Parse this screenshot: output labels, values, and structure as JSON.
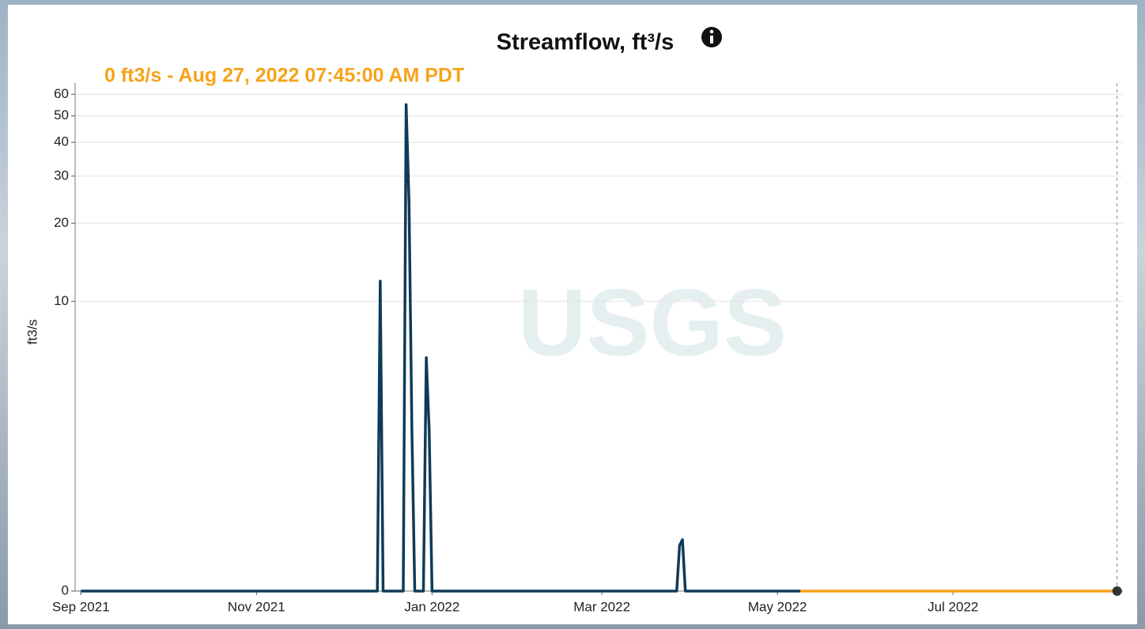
{
  "chart_data": {
    "type": "line",
    "title": "Streamflow, ft³/s",
    "annotation": "0 ft3/s - Aug 27, 2022 07:45:00 AM PDT",
    "ylabel": "ft3/s",
    "watermark": "USGS",
    "yscale": "log1p",
    "grid": true,
    "xlim": [
      "2021-08-30",
      "2022-08-29"
    ],
    "xticks": [
      {
        "value": "2021-09-01",
        "label": "Sep 2021"
      },
      {
        "value": "2021-11-01",
        "label": "Nov 2021"
      },
      {
        "value": "2022-01-01",
        "label": "Jan 2022"
      },
      {
        "value": "2022-03-01",
        "label": "Mar 2022"
      },
      {
        "value": "2022-05-01",
        "label": "May 2022"
      },
      {
        "value": "2022-07-01",
        "label": "Jul 2022"
      }
    ],
    "ylim": [
      0,
      66
    ],
    "yticks": [
      0,
      10,
      20,
      30,
      40,
      50,
      60
    ],
    "series": [
      {
        "color": "#0f3b5a",
        "x": [
          "2021-09-01",
          "2021-12-13",
          "2021-12-14",
          "2021-12-15",
          "2021-12-22",
          "2021-12-23",
          "2021-12-24",
          "2021-12-25",
          "2021-12-26",
          "2021-12-29",
          "2021-12-30",
          "2021-12-31",
          "2022-01-01",
          "2022-03-27",
          "2022-03-28",
          "2022-03-29",
          "2022-03-30",
          "2022-05-09"
        ],
        "values": [
          0,
          0,
          12,
          0,
          0,
          55,
          24,
          2.8,
          0,
          0,
          5.9,
          2.8,
          0,
          0,
          0.46,
          0.53,
          0,
          0
        ]
      },
      {
        "color": "#f6a31a",
        "x": [
          "2022-05-09",
          "2022-08-27"
        ],
        "values": [
          0,
          0
        ]
      }
    ]
  }
}
